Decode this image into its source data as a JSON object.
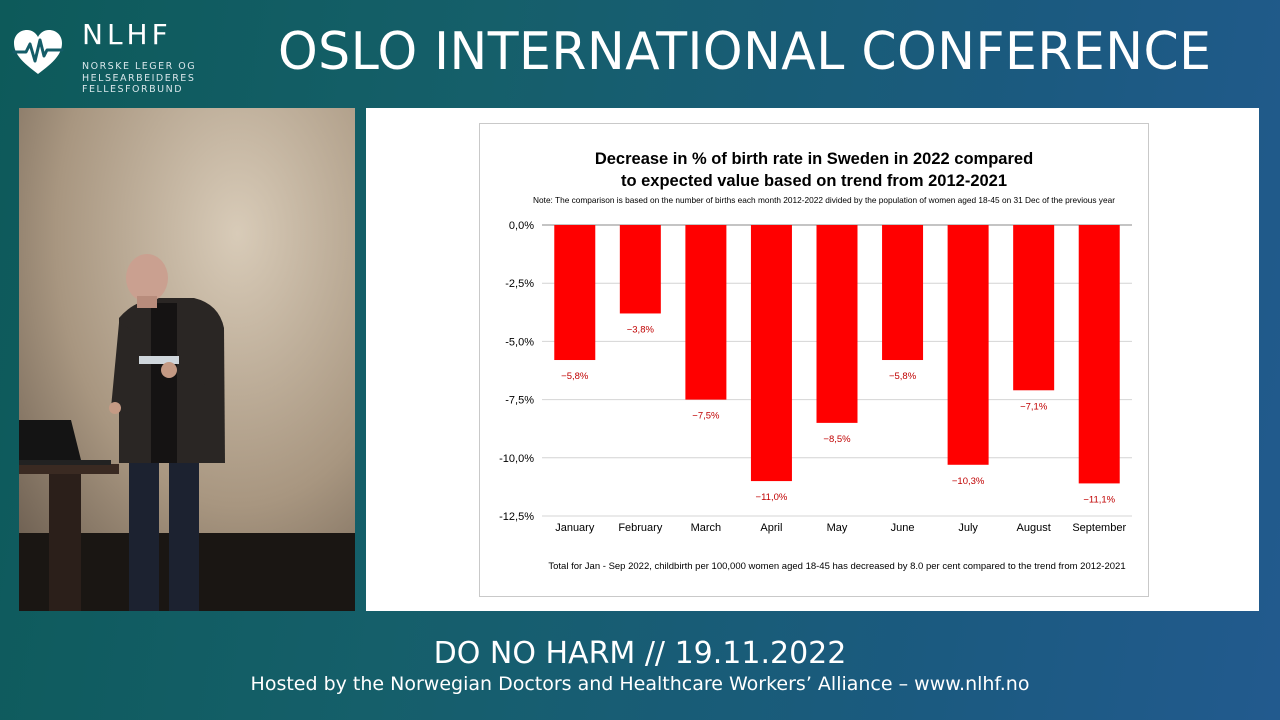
{
  "header": {
    "logo_title": "NLHF",
    "logo_sub_lines": [
      "NORSKE LEGER OG",
      "HELSEARBEIDERES",
      "FELLESFORBUND"
    ],
    "conference_title": "OSLO INTERNATIONAL CONFERENCE"
  },
  "footer": {
    "event_line": "DO NO HARM // 19.11.2022",
    "host_line": "Hosted by the Norwegian Doctors and Healthcare Workers’ Alliance –  www.nlhf.no"
  },
  "colors": {
    "bar": "#ff0000",
    "label": "#c00000"
  },
  "chart_data": {
    "type": "bar",
    "title": [
      "Decrease in % of birth rate in Sweden in 2022 compared",
      "to expected value based on trend from 2012-2021"
    ],
    "note": "Note: The comparison is based on the number of births each month 2012-2022 divided by the population of women aged 18-45 on 31 Dec of the previous year",
    "categories": [
      "January",
      "February",
      "March",
      "April",
      "May",
      "June",
      "July",
      "August",
      "September"
    ],
    "values": [
      -5.8,
      -3.8,
      -7.5,
      -11.0,
      -8.5,
      -5.8,
      -10.3,
      -7.1,
      -11.1
    ],
    "value_labels": [
      "−5,8%",
      "−3,8%",
      "−7,5%",
      "−11,0%",
      "−8,5%",
      "−5,8%",
      "−10,3%",
      "−7,1%",
      "−11,1%"
    ],
    "yticks": [
      0,
      -2.5,
      -5,
      -7.5,
      -10,
      -12.5
    ],
    "ytick_labels": [
      "0,0%",
      "-2,5%",
      "-5,0%",
      "-7,5%",
      "-10,0%",
      "-12,5%"
    ],
    "ylim": [
      -12.5,
      0
    ],
    "grid": true,
    "footnote": "Total for Jan - Sep 2022, childbirth per 100,000 women aged 18-45 has decreased by 8.0 per cent compared to the trend from 2012-2021"
  }
}
